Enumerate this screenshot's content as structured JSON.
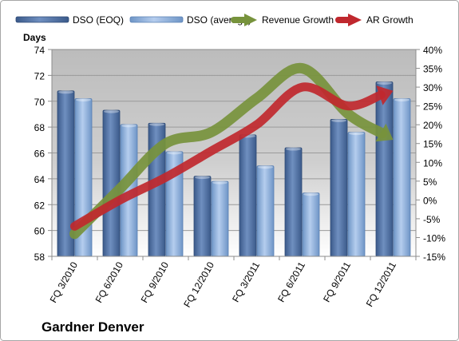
{
  "chart_data": {
    "type": "bar",
    "title": "",
    "company": "Gardner Denver",
    "ylabel": "Days",
    "y2label": "",
    "ylim": [
      58,
      74
    ],
    "y2lim": [
      -15,
      40
    ],
    "y_ticks": [
      "58",
      "60",
      "62",
      "64",
      "66",
      "68",
      "70",
      "72",
      "74"
    ],
    "y2_ticks": [
      "-15%",
      "-10%",
      "-5%",
      "0%",
      "5%",
      "10%",
      "15%",
      "20%",
      "25%",
      "30%",
      "35%",
      "40%"
    ],
    "categories": [
      "FQ 3/2010",
      "FQ 6/2010",
      "FQ 9/2010",
      "FQ 12/2010",
      "FQ 3/2011",
      "FQ 6/2011",
      "FQ 9/2011",
      "FQ 12/2011"
    ],
    "series": [
      {
        "name": "DSO (EOQ)",
        "type": "bar",
        "axis": "left",
        "color": "#4f6e9e",
        "values": [
          70.8,
          69.3,
          68.3,
          64.2,
          67.4,
          66.4,
          68.6,
          71.5
        ]
      },
      {
        "name": "DSO (average)",
        "type": "bar",
        "axis": "left",
        "color": "#8fb4e3",
        "values": [
          70.2,
          68.2,
          66.1,
          63.8,
          65.0,
          62.9,
          67.6,
          70.2
        ]
      },
      {
        "name": "Revenue Growth",
        "type": "line-arrow",
        "axis": "right",
        "color": "#77933c",
        "values": [
          -9,
          3,
          15,
          18,
          27,
          35,
          23,
          16
        ]
      },
      {
        "name": "AR Growth",
        "type": "line-arrow",
        "axis": "right",
        "color": "#c0282e",
        "values": [
          -7,
          0,
          6,
          13,
          20,
          30,
          25,
          29
        ]
      }
    ],
    "grid": true,
    "legend_position": "top"
  }
}
